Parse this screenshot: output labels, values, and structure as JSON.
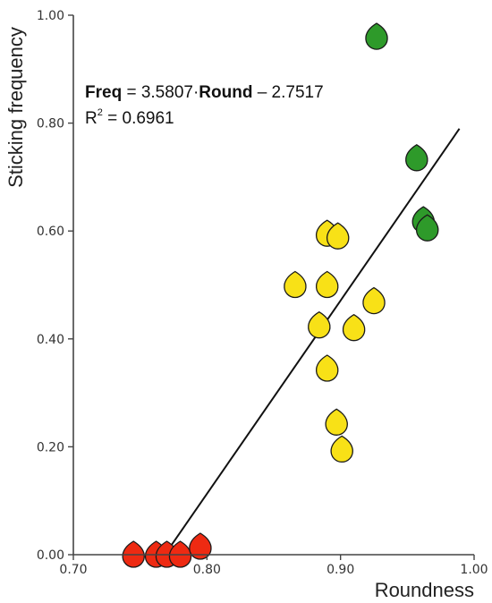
{
  "chart_data": {
    "type": "scatter",
    "xlabel": "Roundness",
    "ylabel": "Sticking frequency",
    "xlim": [
      0.7,
      1.0
    ],
    "ylim": [
      0.0,
      1.0
    ],
    "x_ticks": [
      "0.70",
      "0.80",
      "0.90",
      "1.00"
    ],
    "y_ticks": [
      "0.00",
      "0.20",
      "0.40",
      "0.60",
      "0.80",
      "1.00"
    ],
    "annotation": {
      "line1_bold1": "Freq",
      "line1_mid": " = 3.5807·",
      "line1_bold2": "Round",
      "line1_end": " – 2.7517",
      "line2_prefix": "R",
      "line2_sup": "2",
      "line2_value": " = 0.6961"
    },
    "fit_line": {
      "slope": 3.5807,
      "intercept": -2.7517,
      "x_range": [
        0.7685,
        0.989
      ]
    },
    "colors": {
      "red": "#ee2a12",
      "yellow": "#f8e117",
      "green": "#2e9a2a",
      "line": "#111111",
      "axis": "#444444"
    },
    "points": [
      {
        "x": 0.745,
        "y": 0.0,
        "group": "red"
      },
      {
        "x": 0.762,
        "y": 0.0,
        "group": "red"
      },
      {
        "x": 0.77,
        "y": 0.0,
        "group": "red"
      },
      {
        "x": 0.78,
        "y": 0.0,
        "group": "red"
      },
      {
        "x": 0.795,
        "y": 0.015,
        "group": "red"
      },
      {
        "x": 0.866,
        "y": 0.5,
        "group": "yellow"
      },
      {
        "x": 0.884,
        "y": 0.425,
        "group": "yellow"
      },
      {
        "x": 0.89,
        "y": 0.345,
        "group": "yellow"
      },
      {
        "x": 0.89,
        "y": 0.5,
        "group": "yellow"
      },
      {
        "x": 0.89,
        "y": 0.595,
        "group": "yellow"
      },
      {
        "x": 0.898,
        "y": 0.59,
        "group": "yellow"
      },
      {
        "x": 0.897,
        "y": 0.245,
        "group": "yellow"
      },
      {
        "x": 0.901,
        "y": 0.195,
        "group": "yellow"
      },
      {
        "x": 0.91,
        "y": 0.42,
        "group": "yellow"
      },
      {
        "x": 0.925,
        "y": 0.47,
        "group": "yellow"
      },
      {
        "x": 0.927,
        "y": 0.96,
        "group": "green"
      },
      {
        "x": 0.957,
        "y": 0.735,
        "group": "green"
      },
      {
        "x": 0.962,
        "y": 0.62,
        "group": "green"
      },
      {
        "x": 0.965,
        "y": 0.605,
        "group": "green"
      }
    ]
  }
}
